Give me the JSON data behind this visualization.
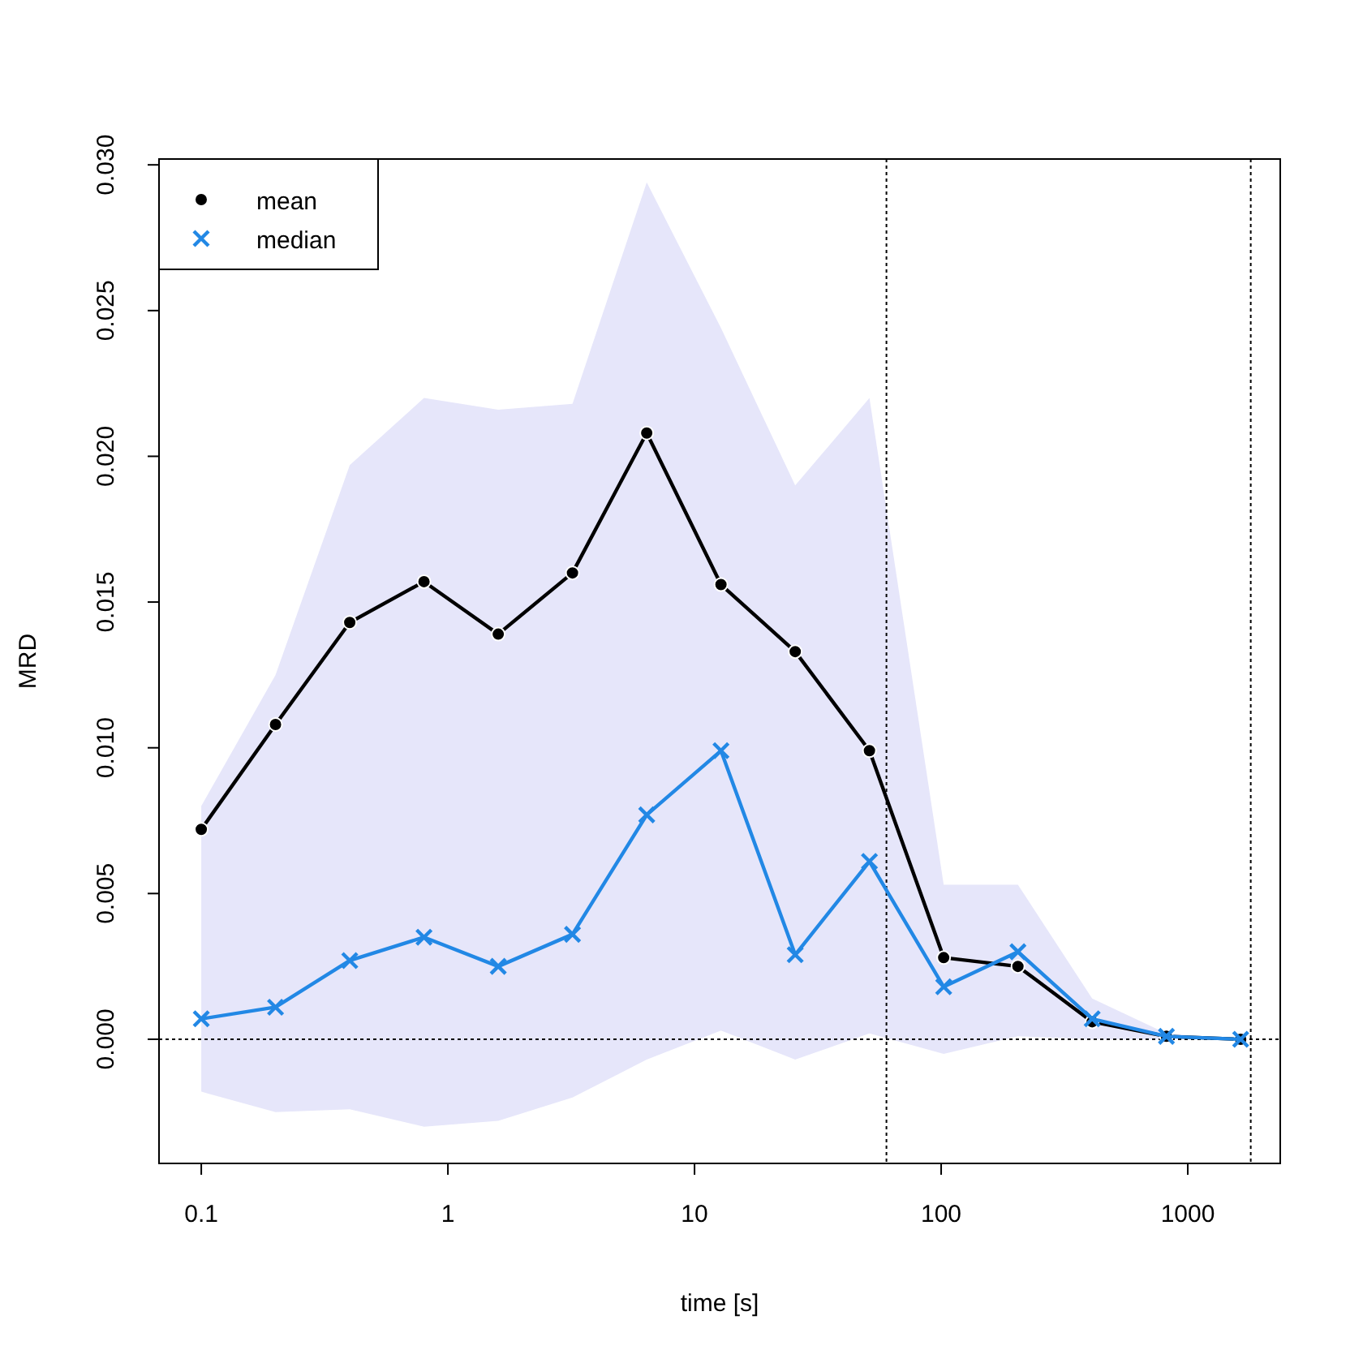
{
  "chart_data": {
    "type": "line",
    "xlabel": "time [s]",
    "ylabel": "MRD",
    "log": "x",
    "x": [
      0.1,
      0.2,
      0.4,
      0.8,
      1.6,
      3.2,
      6.4,
      12.8,
      25.6,
      51.2,
      102.4,
      204.8,
      409.6,
      819.2,
      1638.4
    ],
    "series": [
      {
        "name": "mean",
        "color": "#000000",
        "marker": "circle",
        "values": [
          0.0072,
          0.0108,
          0.0143,
          0.0157,
          0.0139,
          0.016,
          0.0208,
          0.0156,
          0.0133,
          0.0099,
          0.0028,
          0.0025,
          0.0006,
          0.0001,
          0.0
        ],
        "lower": [
          -0.0018,
          -0.0025,
          -0.0024,
          -0.003,
          -0.0028,
          -0.002,
          -0.0007,
          0.0003,
          -0.0007,
          0.0002,
          -0.0005,
          0.0001,
          0.0,
          0.0,
          0.0
        ],
        "upper": [
          0.008,
          0.0125,
          0.0197,
          0.022,
          0.0216,
          0.0218,
          0.0294,
          0.0244,
          0.019,
          0.022,
          0.0053,
          0.0053,
          0.0014,
          0.0002,
          0.0
        ]
      },
      {
        "name": "median",
        "color": "#2288e5",
        "marker": "cross",
        "values": [
          0.0007,
          0.0011,
          0.0027,
          0.0035,
          0.0025,
          0.0036,
          0.0077,
          0.0099,
          0.0029,
          0.0061,
          0.0018,
          0.003,
          0.0007,
          0.0001,
          0.0
        ]
      }
    ],
    "xlim": [
      0.0674,
      2371
    ],
    "xticks": [
      0.1,
      1,
      10,
      100,
      1000
    ],
    "ylim": [
      -0.00426,
      0.0302
    ],
    "yticks": [
      {
        "value": 0,
        "label": "0.000"
      },
      {
        "value": 0.005,
        "label": "0.005"
      },
      {
        "value": 0.01,
        "label": "0.010"
      },
      {
        "value": 0.015,
        "label": "0.015"
      },
      {
        "value": 0.02,
        "label": "0.020"
      },
      {
        "value": 0.025,
        "label": "0.025"
      },
      {
        "value": 0.03,
        "label": "0.030"
      }
    ],
    "ref_lines": [
      {
        "axis": "y",
        "value": 0,
        "line_style": "dotted"
      },
      {
        "axis": "x",
        "value": 60,
        "line_style": "dotted"
      },
      {
        "axis": "x",
        "value": 1800,
        "line_style": "dotted"
      }
    ],
    "legend": "top left",
    "grid": false
  }
}
